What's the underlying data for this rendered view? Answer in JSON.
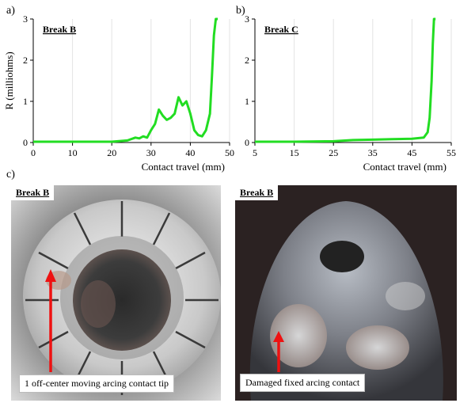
{
  "panel_labels": {
    "a": "a)",
    "b": "b)",
    "c": "c)"
  },
  "chart_data": [
    {
      "type": "line",
      "panel": "a)",
      "title": "Break B",
      "xlabel": "Contact travel (mm)",
      "ylabel": "R (milliohms)",
      "xlim": [
        0,
        50
      ],
      "ylim": [
        0,
        3
      ],
      "xticks": [
        0,
        10,
        20,
        30,
        40,
        50
      ],
      "yticks": [
        0,
        1,
        2,
        3
      ],
      "grid": "vertical",
      "series_color": "#22dd22",
      "x": [
        0,
        5,
        10,
        15,
        20,
        24,
        26,
        27,
        28,
        29,
        30,
        31,
        32,
        33,
        34,
        35,
        36,
        37,
        38,
        39,
        40,
        41,
        42,
        43,
        44,
        45,
        45.5,
        46,
        46.5,
        47
      ],
      "y": [
        0.02,
        0.02,
        0.02,
        0.02,
        0.02,
        0.05,
        0.12,
        0.1,
        0.15,
        0.12,
        0.3,
        0.45,
        0.8,
        0.65,
        0.55,
        0.6,
        0.7,
        1.1,
        0.9,
        1.0,
        0.7,
        0.3,
        0.18,
        0.15,
        0.3,
        0.7,
        1.6,
        2.6,
        3.0,
        3.0
      ]
    },
    {
      "type": "line",
      "panel": "b)",
      "title": "Break C",
      "xlabel": "Contact travel (mm)",
      "ylabel": "",
      "xlim": [
        5,
        55
      ],
      "ylim": [
        0,
        3
      ],
      "xticks": [
        5,
        15,
        25,
        35,
        45,
        55
      ],
      "yticks": [
        0,
        1,
        2,
        3
      ],
      "grid": "vertical",
      "series_color": "#22dd22",
      "x": [
        5,
        15,
        25,
        30,
        35,
        40,
        45,
        48,
        49,
        49.5,
        50,
        50.3,
        50.6,
        51
      ],
      "y": [
        0.02,
        0.02,
        0.03,
        0.06,
        0.07,
        0.08,
        0.09,
        0.12,
        0.25,
        0.6,
        1.5,
        2.4,
        3.0,
        3.0
      ]
    }
  ],
  "photos": {
    "left": {
      "tag": "Break B",
      "caption": "1 off-center moving arcing contact tip"
    },
    "right": {
      "tag": "Break B",
      "caption": "Damaged fixed arcing contact"
    }
  },
  "colors": {
    "arrow": "#ee1111",
    "curve": "#22dd22"
  }
}
